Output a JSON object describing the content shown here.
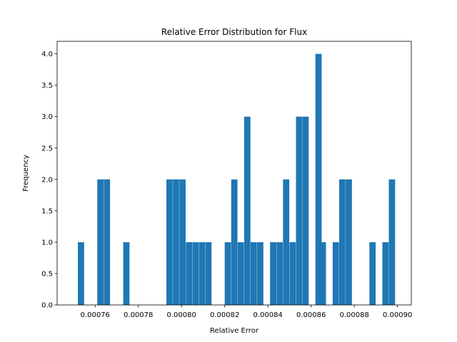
{
  "chart_data": {
    "type": "bar",
    "title": "Relative Error Distribution for Flux",
    "xlabel": "Relative Error",
    "ylabel": "Frequency",
    "xlim": [
      0.0007424,
      0.0009064
    ],
    "ylim": [
      0.0,
      4.2
    ],
    "bin_width": 2.9e-06,
    "grid": false,
    "legend": "none",
    "bar_color": "#1f77b4",
    "x_ticks": [
      {
        "value": 0.00076,
        "label": "0.00076"
      },
      {
        "value": 0.00078,
        "label": "0.00078"
      },
      {
        "value": 0.0008,
        "label": "0.00080"
      },
      {
        "value": 0.00082,
        "label": "0.00082"
      },
      {
        "value": 0.00084,
        "label": "0.00084"
      },
      {
        "value": 0.00086,
        "label": "0.00086"
      },
      {
        "value": 0.00088,
        "label": "0.00088"
      },
      {
        "value": 0.0009,
        "label": "0.00090"
      }
    ],
    "y_ticks": [
      {
        "value": 0.0,
        "label": "0.0"
      },
      {
        "value": 0.5,
        "label": "0.5"
      },
      {
        "value": 1.0,
        "label": "1.0"
      },
      {
        "value": 1.5,
        "label": "1.5"
      },
      {
        "value": 2.0,
        "label": "2.0"
      },
      {
        "value": 2.5,
        "label": "2.5"
      },
      {
        "value": 3.0,
        "label": "3.0"
      },
      {
        "value": 3.5,
        "label": "3.5"
      },
      {
        "value": 4.0,
        "label": "4.0"
      }
    ],
    "bins": [
      {
        "x": 0.000752,
        "value": 1
      },
      {
        "x": 0.000761,
        "value": 2
      },
      {
        "x": 0.000764,
        "value": 2
      },
      {
        "x": 0.000773,
        "value": 1
      },
      {
        "x": 0.000793,
        "value": 2
      },
      {
        "x": 0.000796,
        "value": 2
      },
      {
        "x": 0.000799,
        "value": 2
      },
      {
        "x": 0.000802,
        "value": 1
      },
      {
        "x": 0.000805,
        "value": 1
      },
      {
        "x": 0.000808,
        "value": 1
      },
      {
        "x": 0.000811,
        "value": 1
      },
      {
        "x": 0.00082,
        "value": 1
      },
      {
        "x": 0.000823,
        "value": 2
      },
      {
        "x": 0.000826,
        "value": 1
      },
      {
        "x": 0.000829,
        "value": 3
      },
      {
        "x": 0.000832,
        "value": 1
      },
      {
        "x": 0.000835,
        "value": 1
      },
      {
        "x": 0.000841,
        "value": 1
      },
      {
        "x": 0.000844,
        "value": 1
      },
      {
        "x": 0.000847,
        "value": 2
      },
      {
        "x": 0.00085,
        "value": 1
      },
      {
        "x": 0.000853,
        "value": 3
      },
      {
        "x": 0.000856,
        "value": 3
      },
      {
        "x": 0.000862,
        "value": 4
      },
      {
        "x": 0.000864,
        "value": 1
      },
      {
        "x": 0.00087,
        "value": 1
      },
      {
        "x": 0.000873,
        "value": 2
      },
      {
        "x": 0.000876,
        "value": 2
      },
      {
        "x": 0.000887,
        "value": 1
      },
      {
        "x": 0.000893,
        "value": 1
      },
      {
        "x": 0.000896,
        "value": 2
      }
    ]
  }
}
